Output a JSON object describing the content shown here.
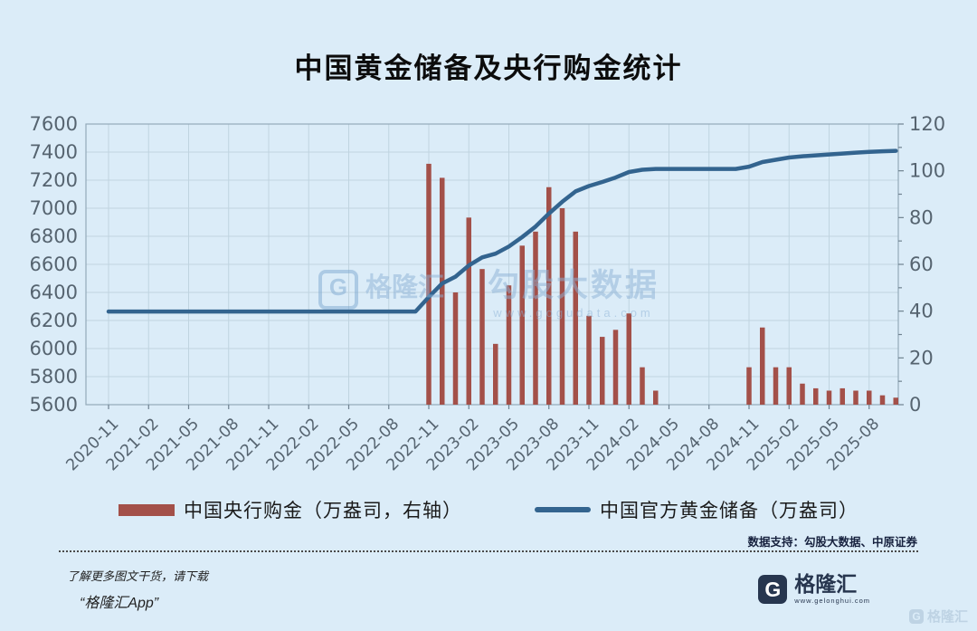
{
  "title": "中国黄金储备及央行购金统计",
  "watermark_center": {
    "icon": "G",
    "brand": "格隆汇",
    "product": "勾股大数据",
    "url": "www.gogudata.com"
  },
  "chart_data": {
    "type": "bar+line",
    "x": [
      "2020-11",
      "2020-12",
      "2021-01",
      "2021-02",
      "2021-03",
      "2021-04",
      "2021-05",
      "2021-06",
      "2021-07",
      "2021-08",
      "2021-09",
      "2021-10",
      "2021-11",
      "2021-12",
      "2022-01",
      "2022-02",
      "2022-03",
      "2022-04",
      "2022-05",
      "2022-06",
      "2022-07",
      "2022-08",
      "2022-09",
      "2022-10",
      "2022-11",
      "2022-12",
      "2023-01",
      "2023-02",
      "2023-03",
      "2023-04",
      "2023-05",
      "2023-06",
      "2023-07",
      "2023-08",
      "2023-09",
      "2023-10",
      "2023-11",
      "2023-12",
      "2024-01",
      "2024-02",
      "2024-03",
      "2024-04",
      "2024-05",
      "2024-06",
      "2024-07",
      "2024-08",
      "2024-09",
      "2024-10",
      "2024-11",
      "2024-12",
      "2025-01",
      "2025-02",
      "2025-03",
      "2025-04",
      "2025-05",
      "2025-06",
      "2025-07",
      "2025-08",
      "2025-09",
      "2025-10"
    ],
    "x_tick_labels": [
      "2020-11",
      "2021-02",
      "2021-05",
      "2021-08",
      "2021-11",
      "2022-02",
      "2022-05",
      "2022-08",
      "2022-11",
      "2023-02",
      "2023-05",
      "2023-08",
      "2023-11",
      "2024-02",
      "2024-05",
      "2024-08",
      "2024-11",
      "2025-02",
      "2025-05",
      "2025-08"
    ],
    "series": [
      {
        "name": "中国央行购金（万盎司，右轴）",
        "type": "bar",
        "axis": "right",
        "color": "#a35049",
        "values": [
          0,
          0,
          0,
          0,
          0,
          0,
          0,
          0,
          0,
          0,
          0,
          0,
          0,
          0,
          0,
          0,
          0,
          0,
          0,
          0,
          0,
          0,
          0,
          0,
          103,
          97,
          48,
          80,
          58,
          26,
          51,
          68,
          74,
          93,
          84,
          74,
          38,
          29,
          32,
          39,
          16,
          6,
          0,
          0,
          0,
          0,
          0,
          0,
          16,
          33,
          16,
          16,
          9,
          7,
          6,
          7,
          6,
          6,
          4,
          3
        ]
      },
      {
        "name": "中国官方黄金储备（万盎司）",
        "type": "line",
        "axis": "left",
        "color": "#33648f",
        "values": [
          6264,
          6264,
          6264,
          6264,
          6264,
          6264,
          6264,
          6264,
          6264,
          6264,
          6264,
          6264,
          6264,
          6264,
          6264,
          6264,
          6264,
          6264,
          6264,
          6264,
          6264,
          6264,
          6264,
          6264,
          6367,
          6464,
          6512,
          6592,
          6650,
          6676,
          6727,
          6795,
          6869,
          6962,
          7046,
          7120,
          7158,
          7187,
          7219,
          7258,
          7274,
          7280,
          7280,
          7280,
          7280,
          7280,
          7280,
          7280,
          7296,
          7329,
          7345,
          7361,
          7370,
          7377,
          7383,
          7390,
          7396,
          7402,
          7406,
          7409
        ]
      }
    ],
    "left_axis": {
      "min": 5600,
      "max": 7600,
      "step": 200,
      "ticks": [
        5600,
        5800,
        6000,
        6200,
        6400,
        6600,
        6800,
        7000,
        7200,
        7400,
        7600
      ]
    },
    "right_axis": {
      "min": 0,
      "max": 120,
      "step": 20,
      "minor_step": 10,
      "ticks": [
        0,
        20,
        40,
        60,
        80,
        100,
        120
      ]
    },
    "grid": true,
    "legend_position": "bottom"
  },
  "data_note": "数据支持：勾股大数据、中原证券",
  "footer": {
    "promo_line1": "了解更多图文干货，请下载",
    "promo_line2": "“格隆汇App”",
    "logo_icon": "G",
    "logo_brand": "格隆汇",
    "logo_url": "www.gelonghui.com",
    "corner_watermark": "格隆汇"
  }
}
